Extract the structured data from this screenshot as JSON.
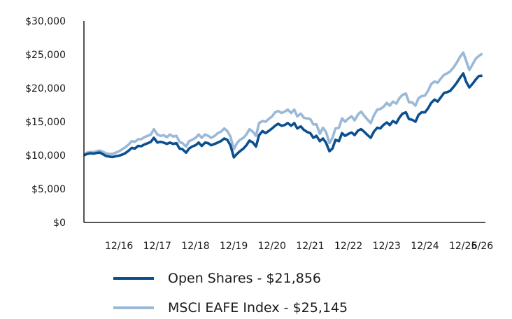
{
  "chart_data": {
    "type": "line",
    "title": "",
    "xlabel": "",
    "ylabel": "",
    "ylim": [
      0,
      30000
    ],
    "y_ticks": [
      "$0",
      "$5,000",
      "$10,000",
      "$15,000",
      "$20,000",
      "$25,000",
      "$30,000"
    ],
    "y_tick_values": [
      0,
      5000,
      10000,
      15000,
      20000,
      25000,
      30000
    ],
    "x_ticks": [
      "12/16",
      "12/17",
      "12/18",
      "12/19",
      "12/20",
      "12/21",
      "12/22",
      "12/23",
      "12/24",
      "12/25",
      "6/26"
    ],
    "x_tick_values": [
      2016.917,
      2017.917,
      2018.917,
      2019.917,
      2020.917,
      2021.917,
      2022.917,
      2023.917,
      2024.917,
      2025.917,
      2026.417
    ],
    "xlim": [
      2016.0,
      2026.5
    ],
    "grid": false,
    "legend_position": "bottom",
    "series": [
      {
        "name": "Open Shares - $21,856",
        "color": "#0b4f8f",
        "x": [
          2016.0,
          2016.08,
          2016.17,
          2016.25,
          2016.33,
          2016.42,
          2016.5,
          2016.58,
          2016.67,
          2016.75,
          2016.83,
          2016.92,
          2017.0,
          2017.08,
          2017.17,
          2017.25,
          2017.33,
          2017.42,
          2017.5,
          2017.58,
          2017.67,
          2017.75,
          2017.83,
          2017.92,
          2018.0,
          2018.08,
          2018.17,
          2018.25,
          2018.33,
          2018.42,
          2018.5,
          2018.58,
          2018.67,
          2018.75,
          2018.83,
          2018.92,
          2019.0,
          2019.08,
          2019.17,
          2019.25,
          2019.33,
          2019.42,
          2019.5,
          2019.58,
          2019.67,
          2019.75,
          2019.83,
          2019.92,
          2020.0,
          2020.08,
          2020.17,
          2020.25,
          2020.33,
          2020.42,
          2020.5,
          2020.58,
          2020.67,
          2020.75,
          2020.83,
          2020.92,
          2021.0,
          2021.08,
          2021.17,
          2021.25,
          2021.33,
          2021.42,
          2021.5,
          2021.58,
          2021.67,
          2021.75,
          2021.83,
          2021.92,
          2022.0,
          2022.08,
          2022.17,
          2022.25,
          2022.33,
          2022.42,
          2022.5,
          2022.58,
          2022.67,
          2022.75,
          2022.83,
          2022.92,
          2023.0,
          2023.08,
          2023.17,
          2023.25,
          2023.33,
          2023.42,
          2023.5,
          2023.58,
          2023.67,
          2023.75,
          2023.83,
          2023.92,
          2024.0,
          2024.08,
          2024.17,
          2024.25,
          2024.33,
          2024.42,
          2024.5,
          2024.58,
          2024.67,
          2024.75,
          2024.83,
          2024.92,
          2025.0,
          2025.08,
          2025.17,
          2025.25,
          2025.33,
          2025.42,
          2025.5,
          2025.58,
          2025.67,
          2025.75,
          2025.83,
          2025.92,
          2026.0,
          2026.08,
          2026.17,
          2026.25,
          2026.33,
          2026.42
        ],
        "y": [
          10000,
          10200,
          10300,
          10250,
          10350,
          10400,
          10150,
          9900,
          9800,
          9750,
          9850,
          9950,
          10100,
          10300,
          10700,
          11100,
          11000,
          11400,
          11350,
          11600,
          11800,
          12000,
          12600,
          11900,
          12000,
          11900,
          11700,
          11900,
          11700,
          11800,
          11000,
          10900,
          10400,
          11000,
          11300,
          11500,
          11900,
          11400,
          11900,
          11800,
          11500,
          11700,
          11900,
          12100,
          12500,
          12300,
          11500,
          9700,
          10200,
          10600,
          11000,
          11500,
          12200,
          11900,
          11300,
          13000,
          13600,
          13300,
          13600,
          14000,
          14400,
          14700,
          14400,
          14500,
          14800,
          14400,
          14800,
          14000,
          14300,
          13800,
          13500,
          13300,
          12600,
          12900,
          12100,
          12500,
          11900,
          10600,
          11000,
          12300,
          12100,
          13300,
          12900,
          13200,
          13400,
          13000,
          13700,
          13900,
          13500,
          13000,
          12600,
          13500,
          14100,
          14000,
          14500,
          14900,
          14500,
          15100,
          14800,
          15600,
          16200,
          16400,
          15400,
          15300,
          15000,
          16000,
          16400,
          16400,
          17000,
          17800,
          18300,
          18000,
          18600,
          19300,
          19400,
          19600,
          20200,
          20800,
          21500,
          22200,
          20900,
          20100,
          20700,
          21300,
          21800,
          21856
        ]
      },
      {
        "name": "MSCI EAFE Index - $25,145",
        "color": "#9ab9d8",
        "x": [
          2016.0,
          2016.08,
          2016.17,
          2016.25,
          2016.33,
          2016.42,
          2016.5,
          2016.58,
          2016.67,
          2016.75,
          2016.83,
          2016.92,
          2017.0,
          2017.08,
          2017.17,
          2017.25,
          2017.33,
          2017.42,
          2017.5,
          2017.58,
          2017.67,
          2017.75,
          2017.83,
          2017.92,
          2018.0,
          2018.08,
          2018.17,
          2018.25,
          2018.33,
          2018.42,
          2018.5,
          2018.58,
          2018.67,
          2018.75,
          2018.83,
          2018.92,
          2019.0,
          2019.08,
          2019.17,
          2019.25,
          2019.33,
          2019.42,
          2019.5,
          2019.58,
          2019.67,
          2019.75,
          2019.83,
          2019.92,
          2020.0,
          2020.08,
          2020.17,
          2020.25,
          2020.33,
          2020.42,
          2020.5,
          2020.58,
          2020.67,
          2020.75,
          2020.83,
          2020.92,
          2021.0,
          2021.08,
          2021.17,
          2021.25,
          2021.33,
          2021.42,
          2021.5,
          2021.58,
          2021.67,
          2021.75,
          2021.83,
          2021.92,
          2022.0,
          2022.08,
          2022.17,
          2022.25,
          2022.33,
          2022.42,
          2022.5,
          2022.58,
          2022.67,
          2022.75,
          2022.83,
          2022.92,
          2023.0,
          2023.08,
          2023.17,
          2023.25,
          2023.33,
          2023.42,
          2023.5,
          2023.58,
          2023.67,
          2023.75,
          2023.83,
          2023.92,
          2024.0,
          2024.08,
          2024.17,
          2024.25,
          2024.33,
          2024.42,
          2024.5,
          2024.58,
          2024.67,
          2024.75,
          2024.83,
          2024.92,
          2025.0,
          2025.08,
          2025.17,
          2025.25,
          2025.33,
          2025.42,
          2025.5,
          2025.58,
          2025.67,
          2025.75,
          2025.83,
          2025.92,
          2026.0,
          2026.08,
          2026.17,
          2026.25,
          2026.33,
          2026.42
        ],
        "y": [
          10000,
          10400,
          10500,
          10450,
          10600,
          10700,
          10500,
          10300,
          10200,
          10200,
          10400,
          10600,
          10900,
          11200,
          11600,
          12100,
          12000,
          12400,
          12400,
          12700,
          12900,
          13100,
          13900,
          13100,
          12900,
          13000,
          12700,
          13100,
          12800,
          12900,
          12000,
          11800,
          11300,
          12100,
          12300,
          12600,
          13100,
          12600,
          13100,
          12900,
          12600,
          12900,
          13300,
          13500,
          14000,
          13600,
          12800,
          10900,
          11800,
          12300,
          12600,
          13100,
          13900,
          13500,
          12900,
          14800,
          15100,
          15000,
          15400,
          15800,
          16400,
          16600,
          16300,
          16500,
          16800,
          16300,
          16800,
          15800,
          16200,
          15600,
          15500,
          15400,
          14600,
          14600,
          13200,
          14100,
          13500,
          11800,
          12600,
          14000,
          14100,
          15500,
          15000,
          15500,
          15800,
          15200,
          16100,
          16500,
          15900,
          15300,
          14800,
          15900,
          16800,
          16900,
          17200,
          17800,
          17400,
          18000,
          17700,
          18500,
          19000,
          19200,
          17900,
          17900,
          17400,
          18500,
          18800,
          18900,
          19600,
          20600,
          21000,
          20800,
          21400,
          22000,
          22200,
          22500,
          23100,
          23800,
          24600,
          25300,
          24000,
          22700,
          23600,
          24400,
          24800,
          25145
        ]
      }
    ]
  }
}
